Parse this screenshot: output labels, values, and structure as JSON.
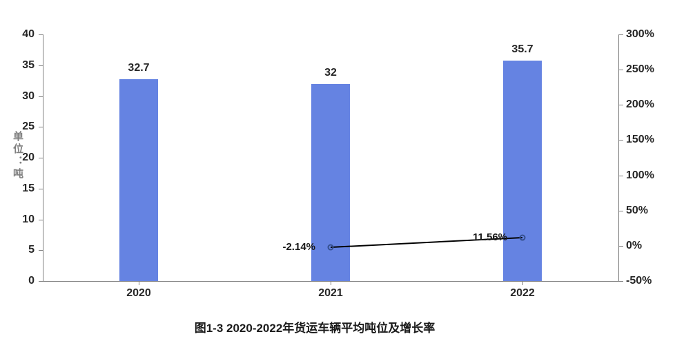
{
  "chart_data": {
    "type": "bar",
    "combo": "bar+line",
    "title": "图1-3 2020-2022年货运车辆平均吨位及增长率",
    "categories": [
      "2020",
      "2021",
      "2022"
    ],
    "series": [
      {
        "name": "平均吨位",
        "type": "bar",
        "axis": "left",
        "values": [
          32.7,
          32,
          35.7
        ],
        "labels": [
          "32.7",
          "32",
          "35.7"
        ],
        "color": "#6583E2"
      },
      {
        "name": "增长率",
        "type": "line",
        "axis": "right",
        "values": [
          null,
          -2.14,
          11.56
        ],
        "labels": [
          "",
          "-2.14%",
          "11.56%"
        ],
        "color": "#000000",
        "marker_color": "#35508F"
      }
    ],
    "left_axis": {
      "label": "单位：吨",
      "min": 0,
      "max": 40,
      "step": 5,
      "ticks": [
        "0",
        "5",
        "10",
        "15",
        "20",
        "25",
        "30",
        "35",
        "40"
      ]
    },
    "right_axis": {
      "min": -50,
      "max": 300,
      "step": 50,
      "ticks": [
        "-50%",
        "0%",
        "50%",
        "100%",
        "150%",
        "200%",
        "250%",
        "300%"
      ]
    },
    "grid": false,
    "legend": "none",
    "colors": {
      "axis_line": "#808080",
      "tick_text": "#262626",
      "unit_label_text": "#7F7F7F"
    }
  }
}
